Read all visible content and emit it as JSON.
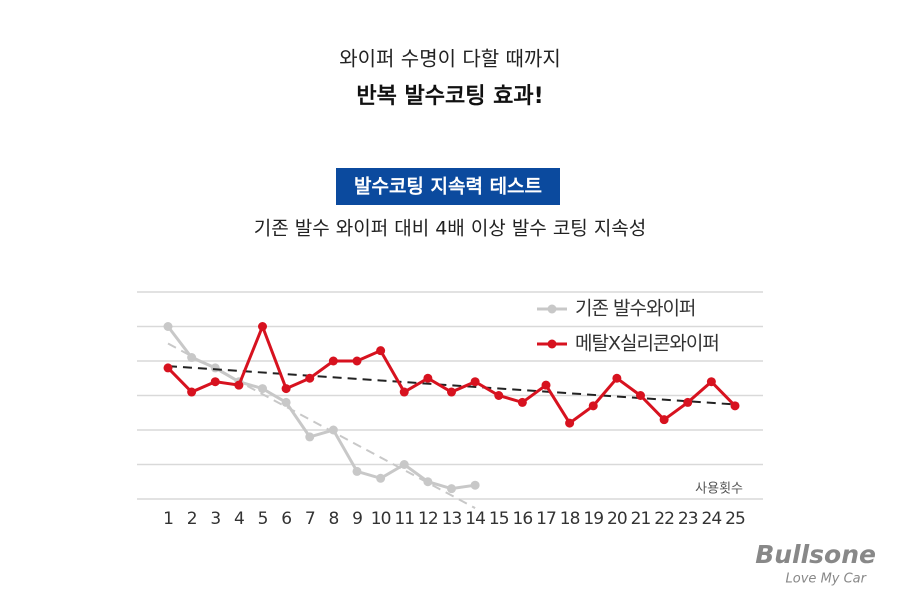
{
  "header": {
    "line1": "와이퍼 수명이 다할 때까지",
    "line2": "반복 발수코팅 효과!",
    "badge": "발수코팅 지속력 테스트",
    "subtitle": "기존 발수 와이퍼 대비 4배 이상 발수 코팅 지속성"
  },
  "logo": {
    "name": "Bullsone",
    "slogan": "Love My Car"
  },
  "chart_data": {
    "type": "line",
    "x_label": "사용횟수",
    "categories": [
      "1",
      "2",
      "3",
      "4",
      "5",
      "6",
      "7",
      "8",
      "9",
      "10",
      "11",
      "12",
      "13",
      "14",
      "15",
      "16",
      "17",
      "18",
      "19",
      "20",
      "21",
      "22",
      "23",
      "24",
      "25"
    ],
    "series": [
      {
        "name": "기존 발수와이퍼",
        "color": "#c8c8c8",
        "values": [
          5.0,
          4.1,
          3.8,
          3.4,
          3.2,
          2.8,
          1.8,
          2.0,
          0.8,
          0.6,
          1.0,
          0.5,
          0.3,
          0.4,
          null,
          null,
          null,
          null,
          null,
          null,
          null,
          null,
          null,
          null,
          null
        ]
      },
      {
        "name": "메탈X실리콘와이퍼",
        "color": "#d7121f",
        "values": [
          3.8,
          3.1,
          3.4,
          3.3,
          5.0,
          3.2,
          3.5,
          4.0,
          4.0,
          4.3,
          3.1,
          3.5,
          3.1,
          3.4,
          3.0,
          2.8,
          3.3,
          2.2,
          2.7,
          3.5,
          3.0,
          2.3,
          2.8,
          3.4,
          2.7
        ]
      }
    ],
    "trendline": true,
    "ylim": [
      0,
      6
    ],
    "yticks": [
      0,
      1,
      2,
      3,
      4,
      5,
      6
    ],
    "grid": true,
    "legend": "upper right"
  }
}
